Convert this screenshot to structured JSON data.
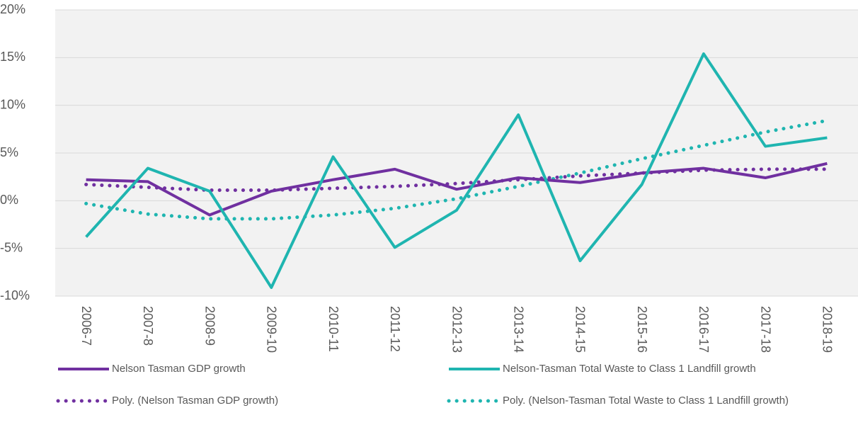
{
  "chart_data": {
    "type": "line",
    "categories": [
      "2006-7",
      "2007-8",
      "2008-9",
      "2009-10",
      "2010-11",
      "2011-12",
      "2012-13",
      "2013-14",
      "2014-15",
      "2015-16",
      "2016-17",
      "2017-18",
      "2018-19"
    ],
    "series": [
      {
        "name": "Nelson Tasman GDP growth",
        "color": "#7030a0",
        "style": "solid",
        "values": [
          2.2,
          2.0,
          -1.5,
          1.0,
          2.2,
          3.3,
          1.2,
          2.4,
          1.9,
          2.9,
          3.4,
          2.4,
          3.9
        ]
      },
      {
        "name": "Nelson-Tasman Total Waste to Class 1 Landfill growth",
        "color": "#1fb5b0",
        "style": "solid",
        "values": [
          -3.8,
          3.4,
          1.0,
          -9.1,
          4.6,
          -4.9,
          -1.0,
          9.0,
          -6.3,
          1.7,
          15.4,
          5.7,
          6.6
        ]
      },
      {
        "name": "Poly. (Nelson Tasman GDP growth)",
        "color": "#7030a0",
        "style": "dotted",
        "values": [
          1.7,
          1.4,
          1.1,
          1.1,
          1.3,
          1.5,
          1.8,
          2.2,
          2.6,
          2.9,
          3.2,
          3.3,
          3.3
        ]
      },
      {
        "name": "Poly. (Nelson-Tasman Total Waste to Class 1 Landfill growth)",
        "color": "#1fb5b0",
        "style": "dotted",
        "values": [
          -0.3,
          -1.4,
          -1.9,
          -1.9,
          -1.5,
          -0.8,
          0.2,
          1.5,
          2.9,
          4.4,
          5.8,
          7.2,
          8.4
        ]
      }
    ],
    "ylim": [
      -10,
      20
    ],
    "yticks": [
      {
        "value": -10,
        "label": "-10%"
      },
      {
        "value": -5,
        "label": "-5%"
      },
      {
        "value": 0,
        "label": "0%"
      },
      {
        "value": 5,
        "label": "5%"
      },
      {
        "value": 10,
        "label": "10%"
      },
      {
        "value": 15,
        "label": "15%"
      },
      {
        "value": 20,
        "label": "20%"
      }
    ],
    "grid": true,
    "legend": "bottom"
  }
}
